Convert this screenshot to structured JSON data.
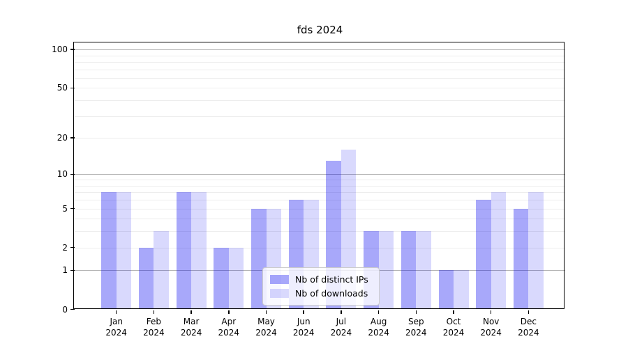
{
  "chart_data": {
    "type": "bar",
    "title": "fds 2024",
    "categories": [
      {
        "month": "Jan",
        "year": "2024"
      },
      {
        "month": "Feb",
        "year": "2024"
      },
      {
        "month": "Mar",
        "year": "2024"
      },
      {
        "month": "Apr",
        "year": "2024"
      },
      {
        "month": "May",
        "year": "2024"
      },
      {
        "month": "Jun",
        "year": "2024"
      },
      {
        "month": "Jul",
        "year": "2024"
      },
      {
        "month": "Aug",
        "year": "2024"
      },
      {
        "month": "Sep",
        "year": "2024"
      },
      {
        "month": "Oct",
        "year": "2024"
      },
      {
        "month": "Nov",
        "year": "2024"
      },
      {
        "month": "Dec",
        "year": "2024"
      }
    ],
    "series": [
      {
        "name": "Nb of distinct IPs",
        "color": "rgba(0,0,240,0.34)",
        "values": [
          7,
          2,
          7,
          2,
          5,
          6,
          13,
          3,
          3,
          1,
          6,
          5
        ]
      },
      {
        "name": "Nb of downloads",
        "color": "rgba(0,0,240,0.15)",
        "values": [
          7,
          3,
          7,
          2,
          5,
          6,
          16,
          3,
          3,
          1,
          7,
          7
        ]
      }
    ],
    "yscale": "log1p",
    "ylim": [
      0,
      112
    ],
    "ytick_labels": [
      "0",
      "1",
      "2",
      "5",
      "10",
      "20",
      "50",
      "100"
    ],
    "ytick_values": [
      0,
      1,
      2,
      5,
      10,
      20,
      50,
      100
    ],
    "major_gridlines": [
      1,
      10,
      100
    ],
    "minor_gridlines": [
      2,
      3,
      4,
      5,
      6,
      7,
      8,
      9,
      20,
      30,
      40,
      50,
      60,
      70,
      80,
      90
    ],
    "grid": true,
    "legend_position": "lower center",
    "colors": {
      "major_grid": "#b2b2b2",
      "minor_grid": "#ededed",
      "spine": "#000000"
    }
  }
}
